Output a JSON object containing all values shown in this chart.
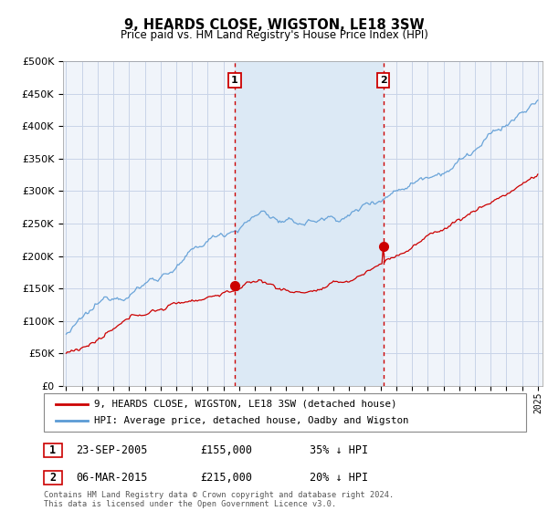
{
  "title": "9, HEARDS CLOSE, WIGSTON, LE18 3SW",
  "subtitle": "Price paid vs. HM Land Registry's House Price Index (HPI)",
  "legend_line1": "9, HEARDS CLOSE, WIGSTON, LE18 3SW (detached house)",
  "legend_line2": "HPI: Average price, detached house, Oadby and Wigston",
  "footer": "Contains HM Land Registry data © Crown copyright and database right 2024.\nThis data is licensed under the Open Government Licence v3.0.",
  "table_rows": [
    {
      "num": "1",
      "date": "23-SEP-2005",
      "price": "£155,000",
      "pct": "35% ↓ HPI"
    },
    {
      "num": "2",
      "date": "06-MAR-2015",
      "price": "£215,000",
      "pct": "20% ↓ HPI"
    }
  ],
  "vline1_x": 2005.72,
  "vline2_x": 2015.17,
  "sale1_y": 155000,
  "sale2_y": 215000,
  "red_color": "#cc0000",
  "blue_color": "#5b9bd5",
  "shade_color": "#dce9f5",
  "plot_bg": "#f0f4fa",
  "grid_color": "#c8d4e8",
  "ylim": [
    0,
    500000
  ],
  "xlim_start": 1994.8,
  "xlim_end": 2025.3
}
